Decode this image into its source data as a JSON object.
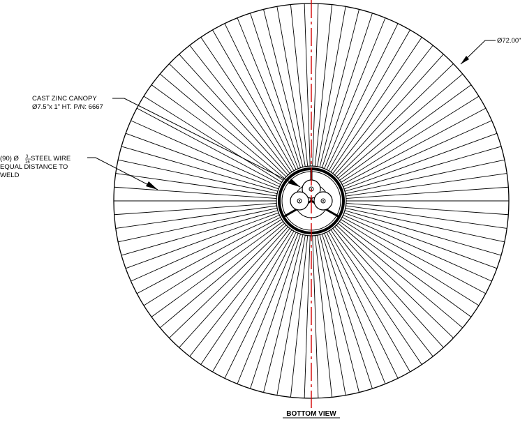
{
  "diagram": {
    "view_title": "BOTTOM VIEW",
    "diameter_label": "Ø72.00\"",
    "canopy": {
      "line1": "CAST ZINC CANOPY",
      "line2": "Ø7.5\"x 1\" HT. P/N: 6667"
    },
    "wire": {
      "line1_prefix": "(90) Ø",
      "fraction_num": "3",
      "fraction_den": "16",
      "line1_suffix": " STEEL WIRE",
      "line2": "EQUAL DISTANCE TO",
      "line3": "WELD"
    },
    "wire_count": 90,
    "colors": {
      "line": "#000000",
      "centerline": "#d40000"
    }
  }
}
